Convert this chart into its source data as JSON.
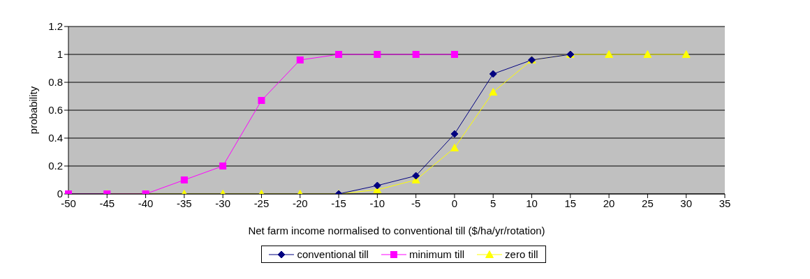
{
  "chart_data": {
    "type": "line",
    "xlabel": "Net farm income normalised to conventional till ($/ha/yr/rotation)",
    "ylabel": "probability",
    "categories": [
      "-50",
      "-45",
      "-40",
      "-35",
      "-30",
      "-25",
      "-20",
      "-15",
      "-10",
      "-5",
      "0",
      "5",
      "10",
      "15",
      "20",
      "25",
      "30",
      "35"
    ],
    "series": [
      {
        "name": "conventional till",
        "color": "#000080",
        "marker": "diamond",
        "values": [
          null,
          null,
          null,
          null,
          null,
          null,
          null,
          0,
          0.06,
          0.13,
          0.43,
          0.86,
          0.96,
          1,
          null,
          null,
          null,
          null
        ]
      },
      {
        "name": "minimum till",
        "color": "#ff00ff",
        "marker": "square",
        "values": [
          0,
          0,
          0,
          0.1,
          0.2,
          0.67,
          0.96,
          1,
          1,
          1,
          1,
          null,
          null,
          null,
          null,
          null,
          null,
          null
        ]
      },
      {
        "name": "zero till",
        "color": "#ffff00",
        "marker": "triangle",
        "values": [
          null,
          0,
          0,
          0,
          0,
          0,
          0,
          0,
          0.03,
          0.1,
          0.33,
          0.73,
          0.96,
          1,
          1,
          1,
          1,
          null
        ]
      }
    ],
    "ylim": [
      0,
      1.2
    ],
    "yticks": [
      0,
      0.2,
      0.4,
      0.6,
      0.8,
      1,
      1.2
    ],
    "grid": "y",
    "legend": "bottom"
  }
}
